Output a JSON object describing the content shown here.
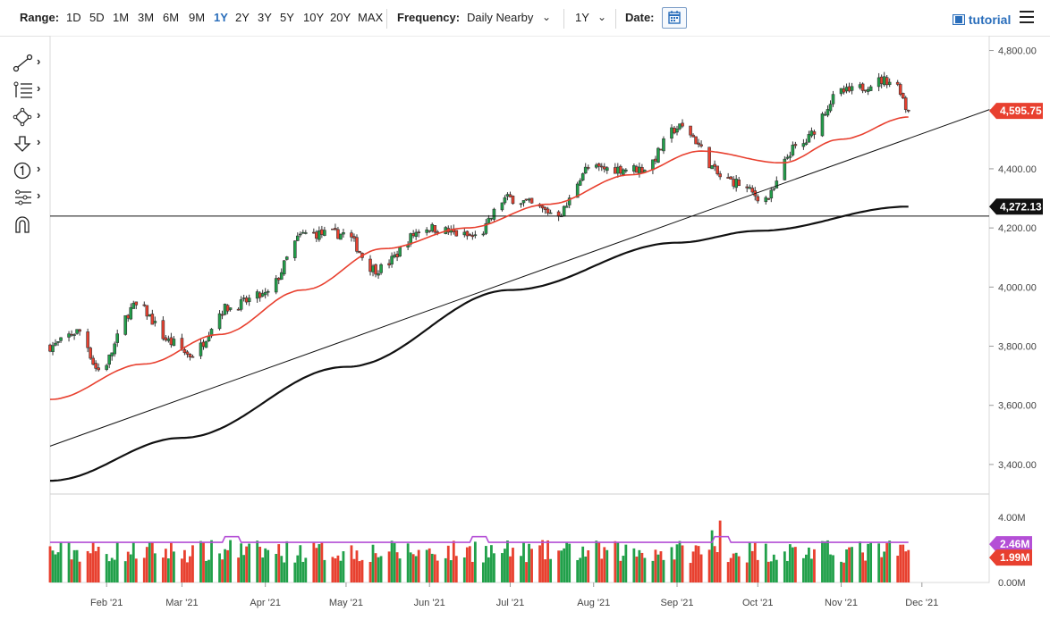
{
  "toolbar": {
    "range_label": "Range:",
    "ranges": [
      "1D",
      "5D",
      "1M",
      "3M",
      "6M",
      "9M",
      "1Y",
      "2Y",
      "3Y",
      "5Y",
      "10Y",
      "20Y",
      "MAX"
    ],
    "active_range": "1Y",
    "frequency_label": "Frequency:",
    "frequency_value": "Daily Nearby",
    "period_value": "1Y",
    "date_label": "Date:",
    "tutorial_label": "tutorial"
  },
  "tools": [
    {
      "icon": "trendline-icon"
    },
    {
      "icon": "fibonacci-icon"
    },
    {
      "icon": "shapes-icon"
    },
    {
      "icon": "arrow-down-icon"
    },
    {
      "icon": "annotation-icon"
    },
    {
      "icon": "pattern-icon"
    },
    {
      "icon": "magnet-icon"
    }
  ],
  "colors": {
    "up": "#21a04a",
    "down": "#e8402f",
    "ma_short": "#e8402f",
    "ma_long": "#111111",
    "volume_avg": "#b44fd6",
    "volume_marker": "#e8402f",
    "volume_avg_marker": "#b44fd6",
    "price_marker": "#e8402f",
    "level_marker": "#111111"
  },
  "chart_data": {
    "type": "candlestick",
    "price_axis": {
      "ticks": [
        3400,
        3600,
        3800,
        4000,
        4200,
        4400,
        4600,
        4800
      ],
      "tick_labels": [
        "3,400.00",
        "3,600.00",
        "3,800.00",
        "4,000.00",
        "4,200.00",
        "4,400.00",
        "4,600.00",
        "4,800.00"
      ],
      "range": [
        3300,
        4850
      ]
    },
    "x_axis": {
      "labels": [
        "Feb '21",
        "Mar '21",
        "Apr '21",
        "May '21",
        "Jun '21",
        "Jul '21",
        "Aug '21",
        "Sep '21",
        "Oct '21",
        "Nov '21",
        "Dec '21"
      ],
      "dates": [
        "2021-02-01",
        "2021-03-01",
        "2021-04-01",
        "2021-05-01",
        "2021-06-01",
        "2021-07-01",
        "2021-08-01",
        "2021-09-01",
        "2021-10-01",
        "2021-11-01",
        "2021-12-01"
      ],
      "range": [
        "2021-01-11",
        "2021-12-26"
      ]
    },
    "anchor_closes": [
      [
        "2021-01-11",
        3800
      ],
      [
        "2021-01-22",
        3850
      ],
      [
        "2021-01-29",
        3720
      ],
      [
        "2021-02-12",
        3935
      ],
      [
        "2021-02-26",
        3810
      ],
      [
        "2021-03-04",
        3770
      ],
      [
        "2021-03-18",
        3930
      ],
      [
        "2021-03-31",
        3970
      ],
      [
        "2021-04-16",
        4180
      ],
      [
        "2021-04-30",
        4180
      ],
      [
        "2021-05-12",
        4060
      ],
      [
        "2021-05-31",
        4200
      ],
      [
        "2021-06-18",
        4170
      ],
      [
        "2021-06-30",
        4300
      ],
      [
        "2021-07-19",
        4250
      ],
      [
        "2021-07-30",
        4400
      ],
      [
        "2021-08-19",
        4400
      ],
      [
        "2021-09-02",
        4540
      ],
      [
        "2021-09-20",
        4360
      ],
      [
        "2021-10-04",
        4300
      ],
      [
        "2021-10-15",
        4470
      ],
      [
        "2021-11-02",
        4660
      ],
      [
        "2021-11-18",
        4700
      ],
      [
        "2021-11-22",
        4680
      ],
      [
        "2021-11-26",
        4595.75
      ]
    ],
    "support_level": 4240,
    "trendline": {
      "start": [
        "2021-01-11",
        3462
      ],
      "end": [
        "2021-12-26",
        4600
      ]
    },
    "ma_short_anchors": [
      [
        "2021-01-11",
        3620
      ],
      [
        "2021-02-15",
        3740
      ],
      [
        "2021-03-15",
        3840
      ],
      [
        "2021-04-15",
        3990
      ],
      [
        "2021-05-15",
        4130
      ],
      [
        "2021-06-15",
        4200
      ],
      [
        "2021-07-15",
        4280
      ],
      [
        "2021-08-15",
        4380
      ],
      [
        "2021-09-10",
        4460
      ],
      [
        "2021-10-10",
        4420
      ],
      [
        "2021-11-01",
        4500
      ],
      [
        "2021-11-26",
        4575
      ]
    ],
    "ma_long_anchors": [
      [
        "2021-01-11",
        3345
      ],
      [
        "2021-03-01",
        3490
      ],
      [
        "2021-05-01",
        3730
      ],
      [
        "2021-07-01",
        3990
      ],
      [
        "2021-09-01",
        4150
      ],
      [
        "2021-10-01",
        4190
      ],
      [
        "2021-11-26",
        4272.13
      ]
    ],
    "price_marker": {
      "value": 4595.75,
      "label": "4,595.75"
    },
    "level_marker": {
      "value": 4272.13,
      "label": "4,272.13"
    },
    "volume": {
      "axis_labels": [
        "4.00M",
        "0.00M"
      ],
      "range": [
        0,
        4
      ],
      "average": 2.46,
      "average_label": "2.46M",
      "last": 1.99,
      "last_label": "1.99M",
      "high_days": [
        [
          "2021-03-19",
          2.6
        ],
        [
          "2021-06-18",
          2.5
        ],
        [
          "2021-09-17",
          3.8
        ],
        [
          "2021-09-14",
          3.2
        ]
      ]
    }
  }
}
